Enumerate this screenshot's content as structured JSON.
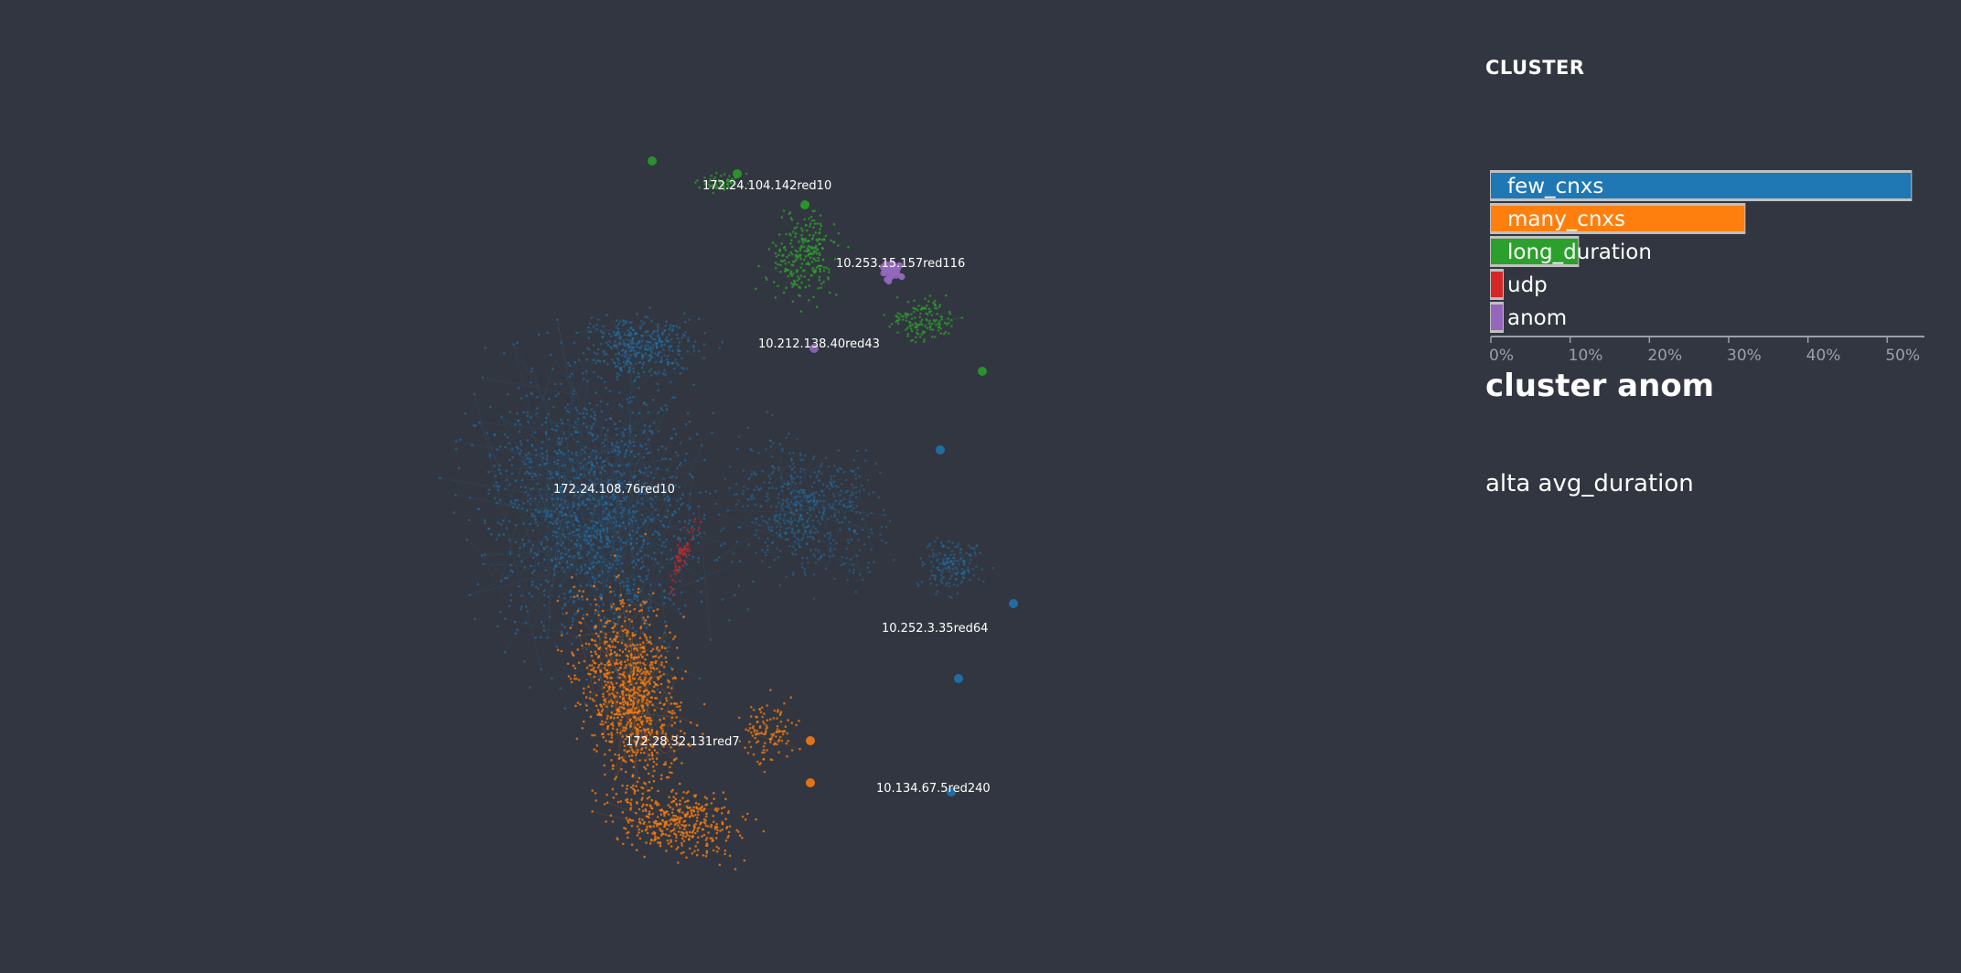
{
  "graph": {
    "labels": [
      {
        "text": "172.24.104.142red10",
        "cluster": "long_duration"
      },
      {
        "text": "10.253.15.157red116",
        "cluster": "anom"
      },
      {
        "text": "10.212.138.40red43",
        "cluster": "anom"
      },
      {
        "text": "172.24.108.76red10",
        "cluster": "few_cnxs"
      },
      {
        "text": "10.252.3.35red64",
        "cluster": "few_cnxs"
      },
      {
        "text": "172.28.32.131red7",
        "cluster": "many_cnxs"
      },
      {
        "text": "10.134.67.5red240",
        "cluster": "few_cnxs"
      }
    ]
  },
  "panel": {
    "heading": "CLUSTER",
    "selected_title": "cluster anom",
    "selected_description": "alta avg_duration"
  },
  "colors": {
    "background": "#323640",
    "few_cnxs": "#1f77b4",
    "many_cnxs": "#ff7f0e",
    "long_duration": "#2ca02c",
    "udp": "#d62728",
    "anom": "#9467bd",
    "bar_outline": "#c0c0c0",
    "axis": "#9aa0aa"
  },
  "chart_data": {
    "type": "bar",
    "orientation": "horizontal",
    "title": "CLUSTER",
    "categories": [
      "few_cnxs",
      "many_cnxs",
      "long_duration",
      "udp",
      "anom"
    ],
    "values": [
      53,
      32,
      11,
      1.5,
      1.5
    ],
    "unit": "%",
    "xlim": [
      0,
      54
    ],
    "ticks": [
      0,
      10,
      20,
      30,
      40,
      50
    ],
    "tick_labels": [
      "0%",
      "10%",
      "20%",
      "30%",
      "40%",
      "50%"
    ],
    "grid": false
  }
}
